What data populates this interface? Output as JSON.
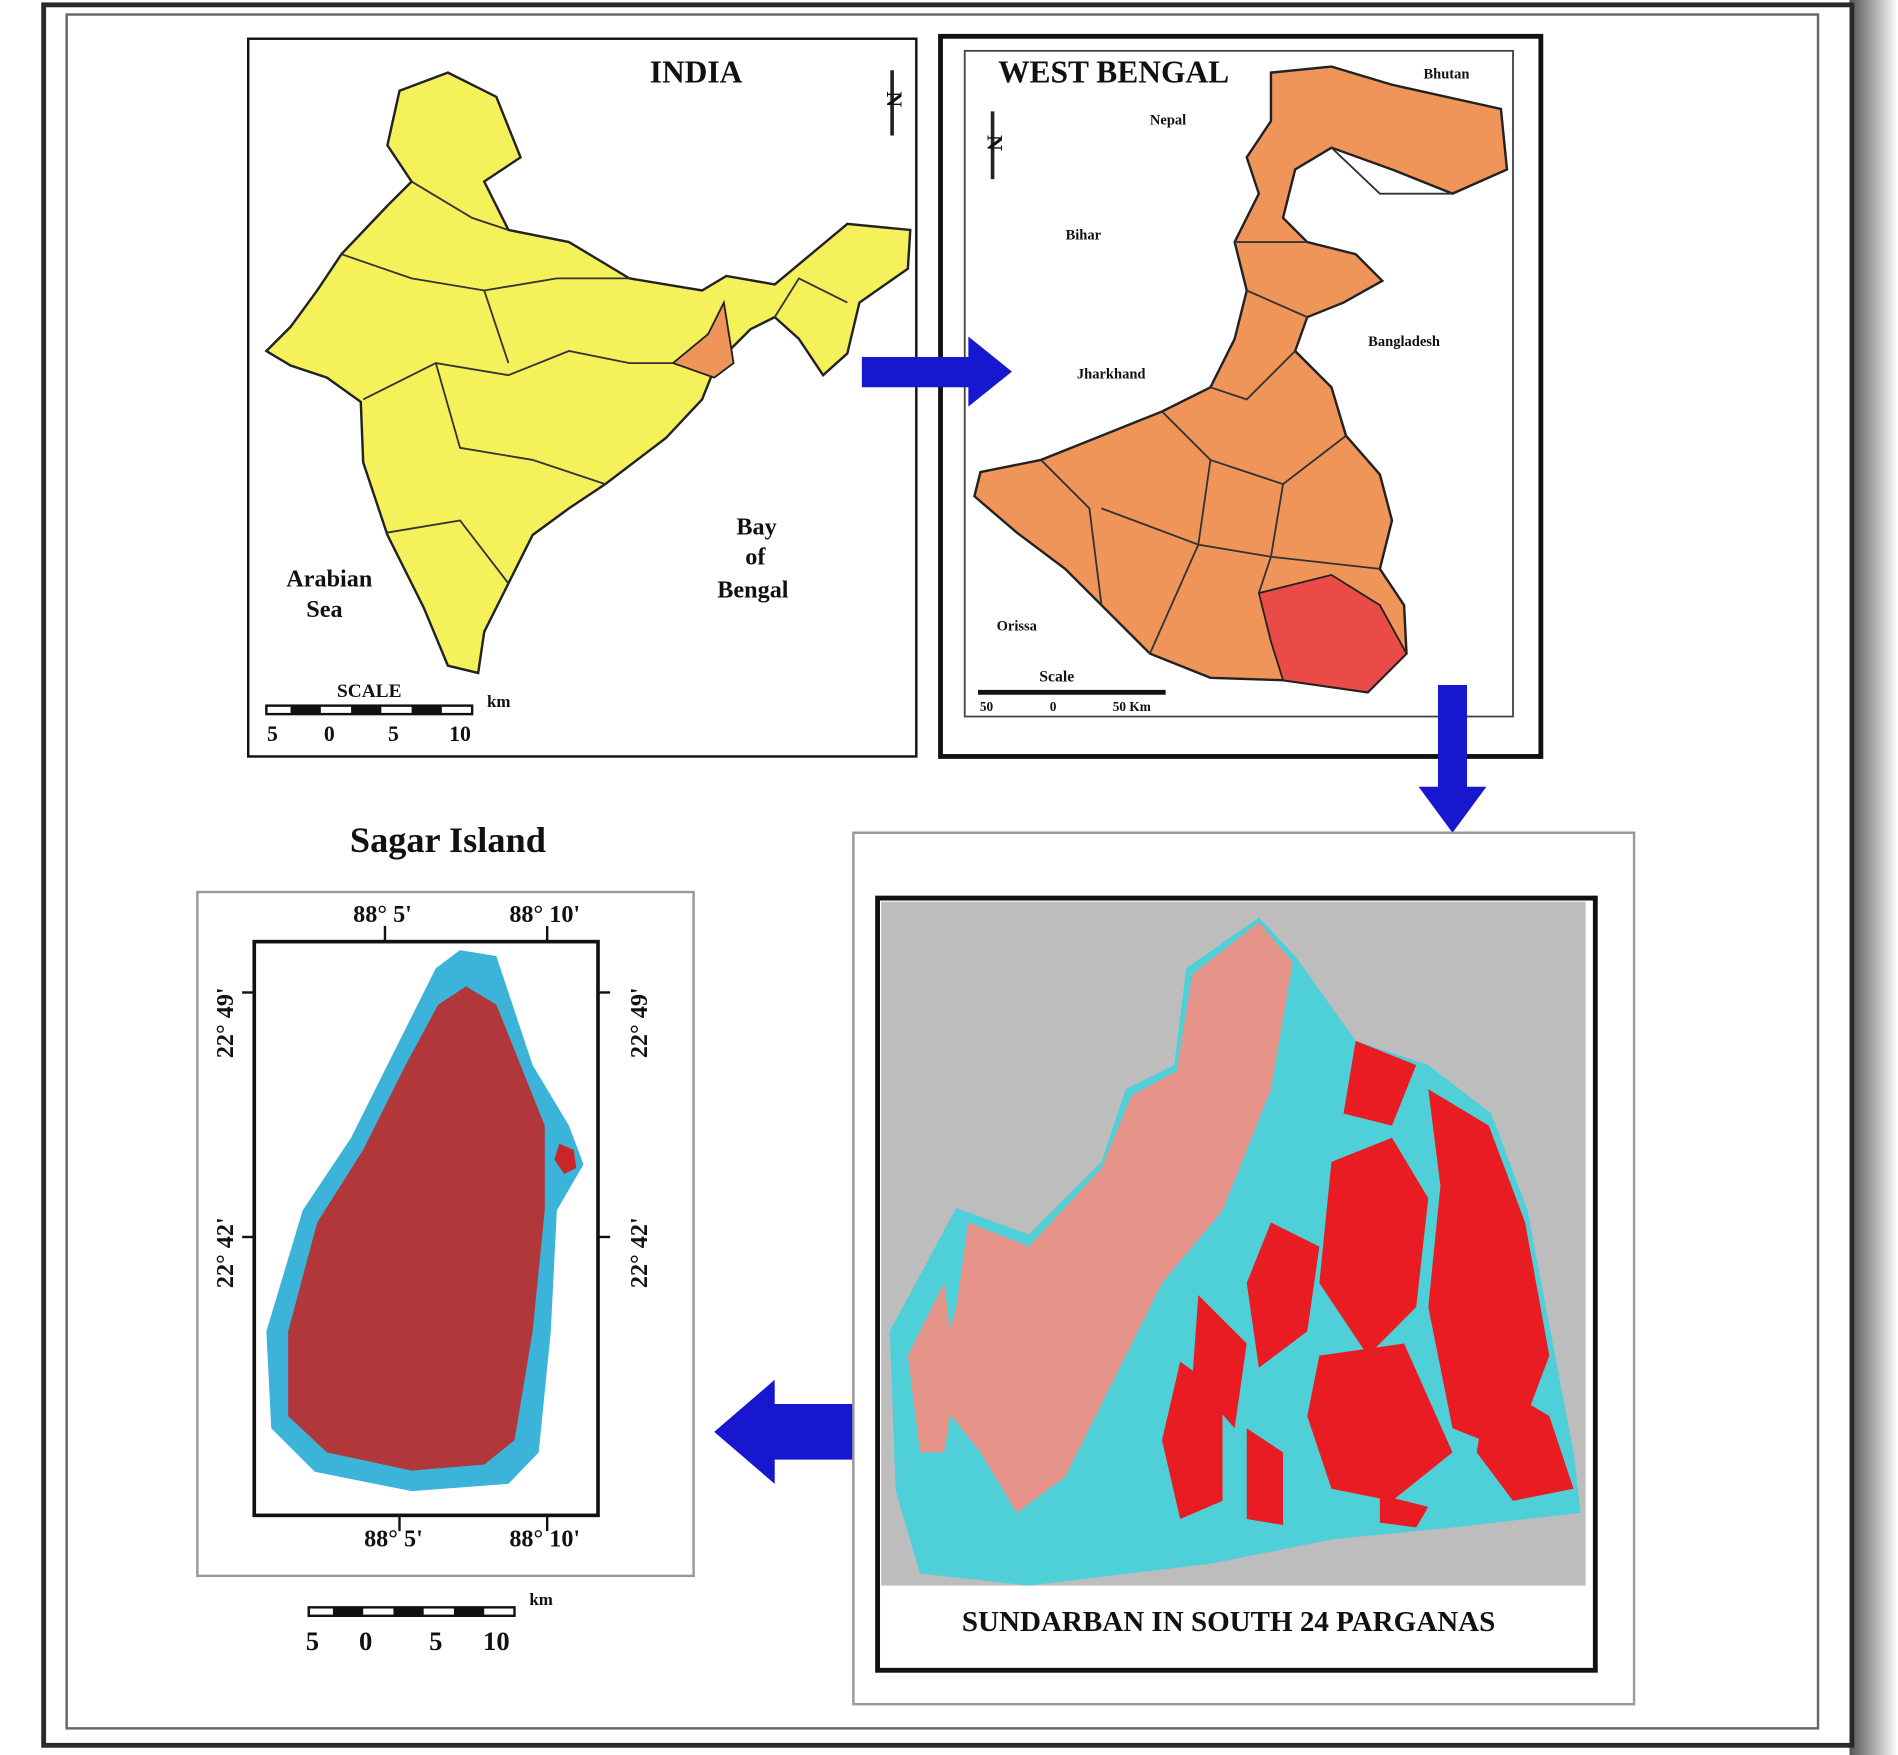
{
  "india_map": {
    "title": "INDIA",
    "north": "N",
    "labels": [
      [
        "Arabian",
        "Sea"
      ],
      [
        "Bay",
        "of",
        "Bengal"
      ]
    ],
    "scale": {
      "title": "SCALE",
      "unit": "km",
      "ticks": [
        "5",
        "0",
        "5",
        "10"
      ]
    }
  },
  "west_bengal_map": {
    "title": "WEST BENGAL",
    "north": "N",
    "labels": [
      "Bhutan",
      "Nepal",
      "Bihar",
      "Jharkhand",
      "Bangladesh",
      "Orissa"
    ],
    "scale": {
      "title": "Scale",
      "ticks": [
        "50",
        "0",
        "50 Km"
      ]
    }
  },
  "sundarban_map": {
    "caption": "SUNDARBAN IN SOUTH 24 PARGANAS"
  },
  "sagar_map": {
    "title": "Sagar Island",
    "longitudes": [
      "88° 5'",
      "88° 10'"
    ],
    "latitudes": [
      "22° 49'",
      "22° 42'"
    ],
    "scale": {
      "unit": "km",
      "ticks": [
        "5",
        "0",
        "5",
        "10"
      ]
    }
  }
}
